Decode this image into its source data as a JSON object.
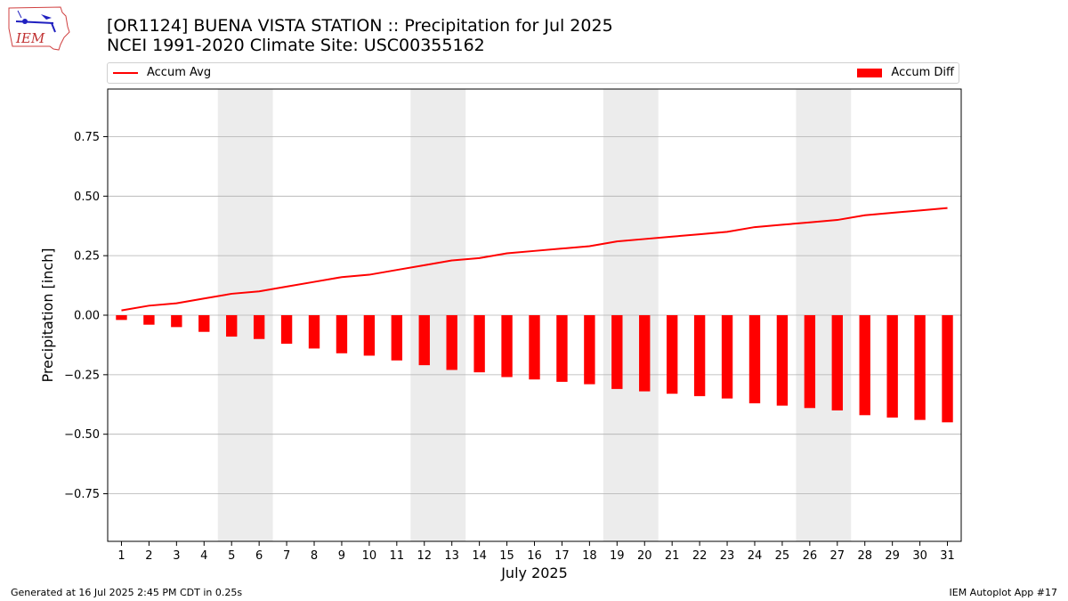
{
  "header": {
    "title_line1": "[OR1124] BUENA VISTA STATION :: Precipitation for Jul 2025",
    "title_line2": "NCEI 1991-2020 Climate Site: USC00355162",
    "logo_text": "IEM"
  },
  "footer": {
    "left": "Generated at 16 Jul 2025 2:45 PM CDT in 0.25s",
    "right": "IEM Autoplot App #17"
  },
  "legend": {
    "line_label": "Accum Avg",
    "bar_label": "Accum Diff",
    "placement": "top"
  },
  "colors": {
    "series": "#ff0000",
    "weekend_shade": "#ececec",
    "grid": "#b0b0b0"
  },
  "chart_data": {
    "type": "bar",
    "xlabel": "July 2025",
    "ylabel": "Precipitation [inch]",
    "x": [
      1,
      2,
      3,
      4,
      5,
      6,
      7,
      8,
      9,
      10,
      11,
      12,
      13,
      14,
      15,
      16,
      17,
      18,
      19,
      20,
      21,
      22,
      23,
      24,
      25,
      26,
      27,
      28,
      29,
      30,
      31
    ],
    "xlim": [
      0.5,
      31.5
    ],
    "ylim": [
      -0.95,
      0.95
    ],
    "yticks": [
      -0.75,
      -0.5,
      -0.25,
      0.0,
      0.25,
      0.5,
      0.75
    ],
    "ytick_labels": [
      "−0.75",
      "−0.50",
      "−0.25",
      "0.00",
      "0.25",
      "0.50",
      "0.75"
    ],
    "grid": "horizontal",
    "shaded_days": [
      [
        5,
        6
      ],
      [
        12,
        13
      ],
      [
        19,
        20
      ],
      [
        26,
        27
      ]
    ],
    "series": [
      {
        "name": "Accum Avg",
        "type": "line",
        "values": [
          0.02,
          0.04,
          0.05,
          0.07,
          0.09,
          0.1,
          0.12,
          0.14,
          0.16,
          0.17,
          0.19,
          0.21,
          0.23,
          0.24,
          0.26,
          0.27,
          0.28,
          0.29,
          0.31,
          0.32,
          0.33,
          0.34,
          0.35,
          0.37,
          0.38,
          0.39,
          0.4,
          0.42,
          0.43,
          0.44,
          0.45
        ]
      },
      {
        "name": "Accum Diff",
        "type": "bar",
        "values": [
          -0.02,
          -0.04,
          -0.05,
          -0.07,
          -0.09,
          -0.1,
          -0.12,
          -0.14,
          -0.16,
          -0.17,
          -0.19,
          -0.21,
          -0.23,
          -0.24,
          -0.26,
          -0.27,
          -0.28,
          -0.29,
          -0.31,
          -0.32,
          -0.33,
          -0.34,
          -0.35,
          -0.37,
          -0.38,
          -0.39,
          -0.4,
          -0.42,
          -0.43,
          -0.44,
          -0.45
        ]
      }
    ]
  }
}
